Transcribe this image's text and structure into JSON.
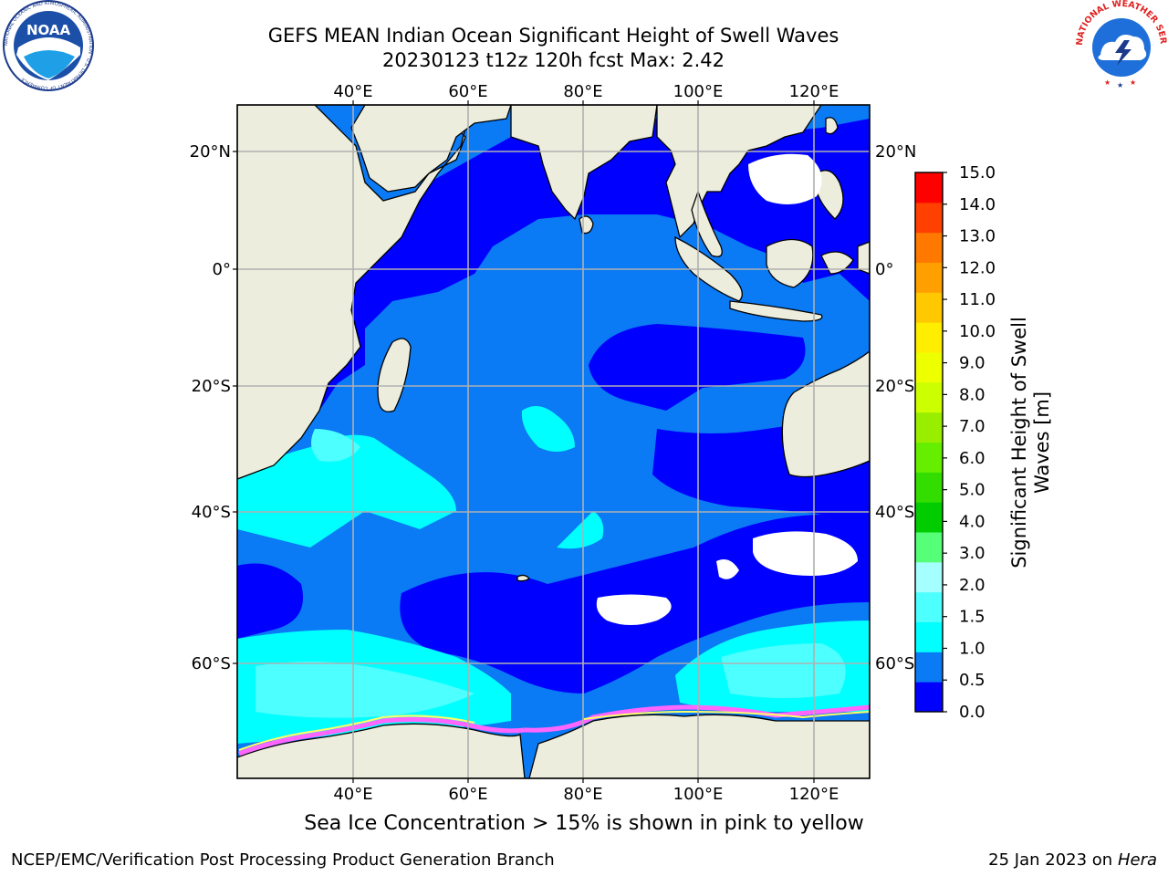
{
  "header": {
    "title_line1": "GEFS MEAN Indian Ocean Significant Height of Swell Waves",
    "title_line2": "20230123 t12z 120h fcst   Max: 2.42"
  },
  "logos": {
    "noaa": {
      "text": "NOAA",
      "ring_text": "NATIONAL OCEANIC AND ATMOSPHERIC ADMINISTRATION · U.S. DEPARTMENT OF COMMERCE"
    },
    "nws": {
      "ring_text": "NATIONAL WEATHER SERVICE"
    }
  },
  "map": {
    "lon_labels": [
      "40°E",
      "60°E",
      "80°E",
      "100°E",
      "120°E"
    ],
    "lat_labels": [
      "20°N",
      "0°",
      "20°S",
      "40°S",
      "60°S"
    ],
    "colors": {
      "land": "#ededde",
      "sea_ice_pink": "#ff66ff",
      "sea_ice_yellow": "#ffff66"
    }
  },
  "colorbar": {
    "label_line1": "Significant Height of Swell",
    "label_line2": "Waves [m]",
    "ticks": [
      "0.0",
      "0.5",
      "1.0",
      "1.5",
      "2.0",
      "3.0",
      "4.0",
      "5.0",
      "6.0",
      "7.0",
      "8.0",
      "9.0",
      "10.0",
      "11.0",
      "12.0",
      "13.0",
      "14.0",
      "15.0"
    ],
    "colors": [
      "#0000ff",
      "#0a7af5",
      "#00ffff",
      "#4dffff",
      "#a6ffff",
      "#55ff77",
      "#00cc00",
      "#33dd00",
      "#66ee00",
      "#99ee00",
      "#ccff00",
      "#eeff00",
      "#ffee00",
      "#ffc800",
      "#ffa000",
      "#ff7800",
      "#ff4000",
      "#ff0000"
    ]
  },
  "footer": {
    "note": "Sea Ice Concentration > 15% is shown in pink to yellow",
    "left": "NCEP/EMC/Verification Post Processing Product Generation Branch",
    "right_date": "25 Jan 2023 on ",
    "right_host": "Hera"
  }
}
